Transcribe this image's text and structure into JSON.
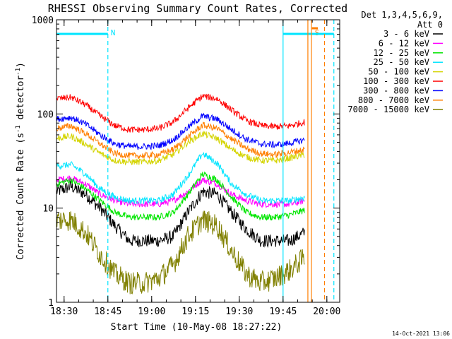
{
  "chart_data": {
    "type": "line",
    "title": "RHESSI Observing Summary Count Rates, Corrected",
    "xlabel": "Start Time (10-May-08 18:27:22)",
    "ylabel_main": "Corrected Count Rate (s",
    "ylabel_sup1": "-1",
    "ylabel_mid": " detector",
    "ylabel_sup2": "-1",
    "ylabel_end": ")",
    "x_unit": "minutes after 18:27:22",
    "xlim": [
      0,
      97
    ],
    "ylim": [
      1,
      1000
    ],
    "yscale": "log",
    "x_ticks": [
      {
        "x": 2.6,
        "label": "18:30"
      },
      {
        "x": 17.6,
        "label": "18:45"
      },
      {
        "x": 32.6,
        "label": "19:00"
      },
      {
        "x": 47.6,
        "label": "19:15"
      },
      {
        "x": 62.6,
        "label": "19:30"
      },
      {
        "x": 77.6,
        "label": "19:45"
      },
      {
        "x": 92.6,
        "label": "20:00"
      }
    ],
    "y_ticks": [
      {
        "y": 1,
        "label": "1"
      },
      {
        "y": 10,
        "label": "10"
      },
      {
        "y": 100,
        "label": "100"
      },
      {
        "y": 1000,
        "label": "1000"
      }
    ],
    "legend_header": [
      "Det 1,3,4,5,6,9,",
      "Att 0"
    ],
    "legend_position": "right",
    "flags": [
      {
        "label": "N",
        "x_start": 0,
        "x_end": 17.6,
        "color": "#00e5ff"
      },
      {
        "label": "S",
        "x_start": 84.5,
        "x_end": 87.5,
        "color": "#ff7f00",
        "line_x_start": 87.5,
        "line_x_end": 89.5
      },
      {
        "label": "",
        "x_start": 77.6,
        "x_end": 95.0,
        "color": "#00e5ff"
      }
    ],
    "vlines": [
      {
        "x": 17.6,
        "color": "#00e5ff",
        "style": "dashed"
      },
      {
        "x": 77.6,
        "color": "#00e5ff",
        "style": "solid"
      },
      {
        "x": 86.1,
        "color": "#ff7f00",
        "style": "solid"
      },
      {
        "x": 87.3,
        "color": "#ff7f00",
        "style": "solid"
      },
      {
        "x": 91.8,
        "color": "#ff7f00",
        "style": "dashed"
      },
      {
        "x": 95.0,
        "color": "#00e5ff",
        "style": "dashed"
      }
    ],
    "x": [
      0,
      5,
      10,
      15,
      20,
      25,
      30,
      35,
      40,
      45,
      50,
      55,
      60,
      65,
      70,
      75,
      80,
      85
    ],
    "series": [
      {
        "name": "3 - 6 keV",
        "color": "#000000",
        "values": [
          15,
          17,
          14,
          10,
          6.5,
          4.5,
          4.5,
          4.5,
          5,
          9,
          15,
          14,
          9,
          6,
          4.5,
          4.5,
          4.5,
          5.5
        ]
      },
      {
        "name": "6 - 12 keV",
        "color": "#ff00ff",
        "values": [
          20,
          21,
          18,
          14,
          12,
          11,
          11,
          11,
          12,
          15,
          20,
          18,
          14,
          12,
          11,
          11,
          11,
          12
        ]
      },
      {
        "name": "12 - 25 keV",
        "color": "#00e600",
        "values": [
          18,
          20,
          16,
          12,
          9,
          8,
          8,
          8,
          9,
          14,
          23,
          20,
          13,
          9,
          8,
          8,
          8.5,
          9.5
        ]
      },
      {
        "name": "25 - 50 keV",
        "color": "#00e5ff",
        "values": [
          28,
          29,
          23,
          16,
          13,
          12,
          12,
          12,
          14,
          22,
          38,
          30,
          18,
          14,
          12,
          12,
          12,
          13
        ]
      },
      {
        "name": "50 - 100 keV",
        "color": "#d4d400",
        "values": [
          55,
          58,
          48,
          38,
          32,
          31,
          31,
          32,
          37,
          50,
          62,
          55,
          42,
          35,
          32,
          32,
          34,
          37
        ]
      },
      {
        "name": "100 - 300 keV",
        "color": "#ff0000",
        "values": [
          145,
          150,
          125,
          95,
          75,
          68,
          68,
          70,
          82,
          115,
          155,
          145,
          110,
          85,
          75,
          73,
          75,
          82
        ]
      },
      {
        "name": "300 - 800 keV",
        "color": "#0000ff",
        "values": [
          88,
          92,
          78,
          60,
          48,
          45,
          45,
          46,
          53,
          72,
          95,
          88,
          68,
          54,
          48,
          47,
          49,
          53
        ]
      },
      {
        "name": "800 - 7000 keV",
        "color": "#ff7f00",
        "values": [
          70,
          75,
          62,
          48,
          38,
          36,
          36,
          37,
          42,
          57,
          76,
          70,
          54,
          43,
          38,
          37,
          39,
          42
        ]
      },
      {
        "name": "7000 - 15000 keV",
        "color": "#808000",
        "values": [
          7.5,
          7.5,
          5.5,
          3.2,
          2.0,
          1.6,
          1.6,
          1.8,
          2.5,
          5,
          7.5,
          6.5,
          3.5,
          2,
          1.6,
          1.8,
          2.2,
          3
        ]
      }
    ]
  },
  "footer_timestamp": "14-Oct-2021 13:06"
}
